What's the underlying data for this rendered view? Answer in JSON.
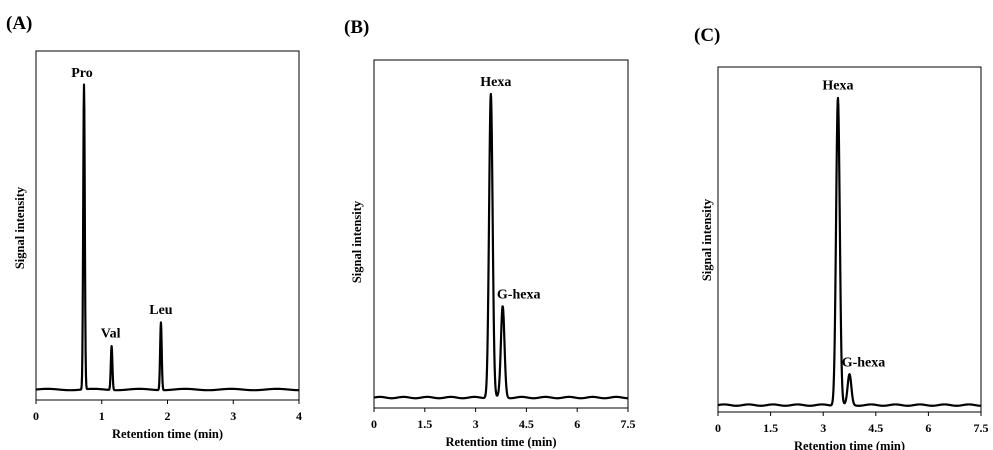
{
  "chart_data": [
    {
      "panel": "(A)",
      "type": "line",
      "xlabel": "Retention time (min)",
      "ylabel": "Signal intensity",
      "xlim": [
        0,
        4
      ],
      "ylim": [
        0,
        1
      ],
      "xticks": [
        "0",
        "1",
        "2",
        "3",
        "4"
      ],
      "xtick_values": [
        0,
        1,
        2,
        3,
        4
      ],
      "peaks": [
        {
          "name": "Pro",
          "x": 0.73,
          "height": 0.9
        },
        {
          "name": "Val",
          "x": 1.15,
          "height": 0.13
        },
        {
          "name": "Leu",
          "x": 1.9,
          "height": 0.2
        }
      ]
    },
    {
      "panel": "(B)",
      "type": "line",
      "xlabel": "Retention time (min)",
      "ylabel": "Signal intensity",
      "xlim": [
        0,
        7.5
      ],
      "ylim": [
        0,
        1
      ],
      "xticks": [
        "0",
        "1.5",
        "3",
        "4.5",
        "6",
        "7.5"
      ],
      "xtick_values": [
        0,
        1.5,
        3,
        4.5,
        6,
        7.5
      ],
      "peaks": [
        {
          "name": "Hexa",
          "x": 3.45,
          "height": 0.9
        },
        {
          "name": "G-hexa",
          "x": 3.8,
          "height": 0.27
        }
      ]
    },
    {
      "panel": "(C)",
      "type": "line",
      "xlabel": "Retention time (min)",
      "ylabel": "Signal intensity",
      "xlim": [
        0,
        7.5
      ],
      "ylim": [
        0,
        1
      ],
      "xticks": [
        "0",
        "1.5",
        "3",
        "4.5",
        "6",
        "7.5"
      ],
      "xtick_values": [
        0,
        1.5,
        3,
        4.5,
        6,
        7.5
      ],
      "peaks": [
        {
          "name": "Hexa",
          "x": 3.42,
          "height": 0.91
        },
        {
          "name": "G-hexa",
          "x": 3.75,
          "height": 0.09
        }
      ]
    }
  ]
}
